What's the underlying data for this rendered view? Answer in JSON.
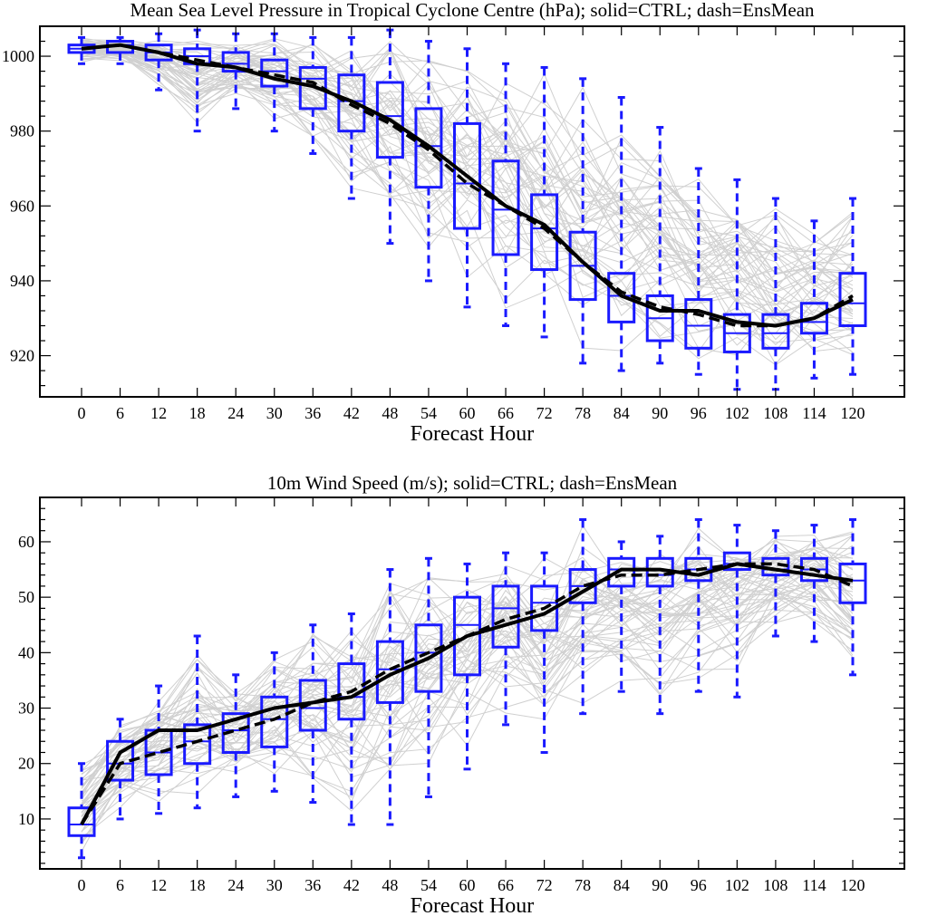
{
  "chart_data": [
    {
      "type": "box",
      "title": "Mean Sea Level Pressure in Tropical Cyclone Centre (hPa); solid=CTRL; dash=EnsMean",
      "xlabel": "Forecast Hour",
      "ylabel": "",
      "categories": [
        "0",
        "6",
        "12",
        "18",
        "24",
        "30",
        "36",
        "42",
        "48",
        "54",
        "60",
        "66",
        "72",
        "78",
        "84",
        "90",
        "96",
        "102",
        "108",
        "114",
        "120"
      ],
      "ylim": [
        909,
        1008
      ],
      "yticks": [
        920,
        940,
        960,
        980,
        1000
      ],
      "boxes": [
        {
          "min": 998,
          "q1": 1001,
          "median": 1002,
          "q3": 1003,
          "max": 1005
        },
        {
          "min": 998,
          "q1": 1001,
          "median": 1003,
          "q3": 1004,
          "max": 1005
        },
        {
          "min": 991,
          "q1": 999,
          "median": 1001,
          "q3": 1003,
          "max": 1006
        },
        {
          "min": 980,
          "q1": 998,
          "median": 1000,
          "q3": 1002,
          "max": 1007
        },
        {
          "min": 986,
          "q1": 996,
          "median": 998,
          "q3": 1001,
          "max": 1006
        },
        {
          "min": 980,
          "q1": 992,
          "median": 996,
          "q3": 999,
          "max": 1006
        },
        {
          "min": 974,
          "q1": 986,
          "median": 994,
          "q3": 997,
          "max": 1005
        },
        {
          "min": 962,
          "q1": 980,
          "median": 988,
          "q3": 995,
          "max": 1005
        },
        {
          "min": 950,
          "q1": 973,
          "median": 984,
          "q3": 993,
          "max": 1007
        },
        {
          "min": 940,
          "q1": 965,
          "median": 976,
          "q3": 986,
          "max": 1004
        },
        {
          "min": 933,
          "q1": 954,
          "median": 966,
          "q3": 982,
          "max": 1002
        },
        {
          "min": 928,
          "q1": 947,
          "median": 959,
          "q3": 972,
          "max": 998
        },
        {
          "min": 925,
          "q1": 943,
          "median": 954,
          "q3": 963,
          "max": 997
        },
        {
          "min": 918,
          "q1": 935,
          "median": 944,
          "q3": 953,
          "max": 994
        },
        {
          "min": 916,
          "q1": 929,
          "median": 936,
          "q3": 942,
          "max": 989
        },
        {
          "min": 918,
          "q1": 924,
          "median": 930,
          "q3": 936,
          "max": 981
        },
        {
          "min": 915,
          "q1": 922,
          "median": 928,
          "q3": 935,
          "max": 970
        },
        {
          "min": 911,
          "q1": 921,
          "median": 926,
          "q3": 931,
          "max": 967
        },
        {
          "min": 911,
          "q1": 922,
          "median": 926,
          "q3": 931,
          "max": 962
        },
        {
          "min": 914,
          "q1": 926,
          "median": 929,
          "q3": 934,
          "max": 956
        },
        {
          "min": 915,
          "q1": 928,
          "median": 934,
          "q3": 942,
          "max": 962
        }
      ],
      "series": [
        {
          "name": "CTRL",
          "style": "solid",
          "values": [
            1002,
            1003,
            1001,
            998,
            997,
            994,
            992,
            988,
            983,
            976,
            968,
            960,
            955,
            945,
            936,
            932,
            932,
            929,
            928,
            930,
            935
          ]
        },
        {
          "name": "EnsMean",
          "style": "dash",
          "values": [
            1002,
            1003,
            1001,
            999,
            997,
            995,
            993,
            987,
            982,
            975,
            966,
            960,
            954,
            945,
            937,
            933,
            931,
            928,
            928,
            930,
            936
          ]
        }
      ],
      "colors": {
        "box": "#1a1aff",
        "members": "#d0d0d0",
        "lines": "#000000"
      }
    },
    {
      "type": "box",
      "title": "10m Wind Speed (m/s); solid=CTRL; dash=EnsMean",
      "xlabel": "Forecast Hour",
      "ylabel": "",
      "categories": [
        "0",
        "6",
        "12",
        "18",
        "24",
        "30",
        "36",
        "42",
        "48",
        "54",
        "60",
        "66",
        "72",
        "78",
        "84",
        "90",
        "96",
        "102",
        "108",
        "114",
        "120"
      ],
      "ylim": [
        1,
        68
      ],
      "yticks": [
        10,
        20,
        30,
        40,
        50,
        60
      ],
      "boxes": [
        {
          "min": 3,
          "q1": 7,
          "median": 9,
          "q3": 12,
          "max": 20
        },
        {
          "min": 10,
          "q1": 17,
          "median": 20,
          "q3": 24,
          "max": 28
        },
        {
          "min": 11,
          "q1": 18,
          "median": 22,
          "q3": 26,
          "max": 34
        },
        {
          "min": 12,
          "q1": 20,
          "median": 24,
          "q3": 27,
          "max": 43
        },
        {
          "min": 14,
          "q1": 22,
          "median": 26,
          "q3": 29,
          "max": 36
        },
        {
          "min": 15,
          "q1": 23,
          "median": 28,
          "q3": 32,
          "max": 40
        },
        {
          "min": 13,
          "q1": 26,
          "median": 30,
          "q3": 35,
          "max": 45
        },
        {
          "min": 9,
          "q1": 28,
          "median": 32,
          "q3": 38,
          "max": 47
        },
        {
          "min": 9,
          "q1": 31,
          "median": 37,
          "q3": 42,
          "max": 55
        },
        {
          "min": 14,
          "q1": 33,
          "median": 40,
          "q3": 45,
          "max": 57
        },
        {
          "min": 19,
          "q1": 36,
          "median": 45,
          "q3": 50,
          "max": 56
        },
        {
          "min": 27,
          "q1": 41,
          "median": 48,
          "q3": 52,
          "max": 58
        },
        {
          "min": 22,
          "q1": 44,
          "median": 49,
          "q3": 52,
          "max": 58
        },
        {
          "min": 29,
          "q1": 49,
          "median": 52,
          "q3": 55,
          "max": 64
        },
        {
          "min": 33,
          "q1": 52,
          "median": 55,
          "q3": 57,
          "max": 60
        },
        {
          "min": 29,
          "q1": 52,
          "median": 54,
          "q3": 57,
          "max": 61
        },
        {
          "min": 33,
          "q1": 53,
          "median": 55,
          "q3": 57,
          "max": 64
        },
        {
          "min": 32,
          "q1": 55,
          "median": 56,
          "q3": 58,
          "max": 63
        },
        {
          "min": 43,
          "q1": 54,
          "median": 55,
          "q3": 57,
          "max": 62
        },
        {
          "min": 42,
          "q1": 53,
          "median": 55,
          "q3": 57,
          "max": 63
        },
        {
          "min": 36,
          "q1": 49,
          "median": 53,
          "q3": 56,
          "max": 64
        }
      ],
      "series": [
        {
          "name": "CTRL",
          "style": "solid",
          "values": [
            9,
            22,
            26,
            26,
            28,
            30,
            31,
            32,
            36,
            39,
            43,
            45,
            47,
            51,
            55,
            55,
            54,
            56,
            55,
            54,
            53
          ]
        },
        {
          "name": "EnsMean",
          "style": "dash",
          "values": [
            9,
            20,
            22,
            24,
            26,
            28,
            31,
            33,
            37,
            40,
            43,
            46,
            48,
            52,
            54,
            54,
            55,
            56,
            56,
            55,
            52
          ]
        }
      ],
      "colors": {
        "box": "#1a1aff",
        "members": "#d0d0d0",
        "lines": "#000000"
      }
    }
  ]
}
